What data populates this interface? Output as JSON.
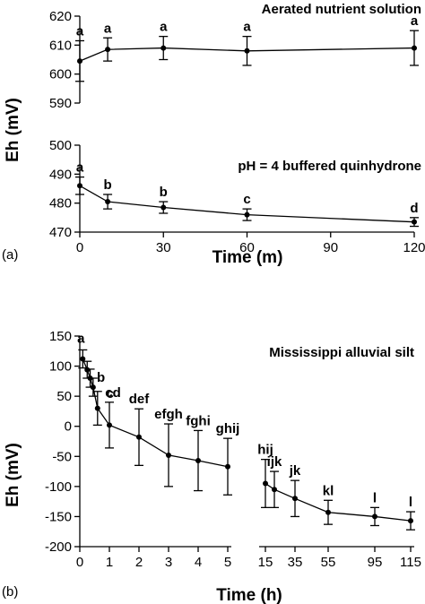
{
  "chart_data": [
    {
      "type": "line",
      "panel_label": "(a)",
      "annotation": "Aerated nutrient solution",
      "ylabel": "Eh (mV)",
      "xlabel": "Time (m)",
      "ylim": [
        590,
        620
      ],
      "yticks": [
        "590",
        "600",
        "610",
        "620"
      ],
      "xlim": [
        0,
        120
      ],
      "xticks": [
        "0",
        "30",
        "60",
        "90",
        "120"
      ],
      "x": [
        0,
        10,
        30,
        60,
        120
      ],
      "y": [
        604.5,
        608.5,
        609,
        608,
        609
      ],
      "err": [
        7,
        4,
        4,
        5,
        6
      ],
      "letters": [
        "a",
        "a",
        "a",
        "a",
        "a"
      ]
    },
    {
      "type": "line",
      "annotation": "pH = 4 buffered quinhydrone",
      "ylim": [
        470,
        500
      ],
      "yticks": [
        "470",
        "480",
        "490",
        "500"
      ],
      "xlim": [
        0,
        120
      ],
      "xticks": [
        "0",
        "30",
        "60",
        "90",
        "120"
      ],
      "x": [
        0,
        10,
        30,
        60,
        120
      ],
      "y": [
        486,
        480.5,
        478.5,
        476,
        473.5
      ],
      "err": [
        3,
        2.5,
        2,
        2,
        1.5
      ],
      "letters": [
        "a",
        "b",
        "b",
        "c",
        "d"
      ]
    },
    {
      "type": "line",
      "panel_label": "(b)",
      "annotation": "Mississippi alluvial silt",
      "ylabel": "Eh (mV)",
      "xlabel": "Time (h)",
      "ylim": [
        -200,
        150
      ],
      "yticks": [
        "-200",
        "-150",
        "-100",
        "-50",
        "0",
        "50",
        "100",
        "150"
      ],
      "xticks_left": [
        "0",
        "1",
        "2",
        "3",
        "4",
        "5"
      ],
      "xticks_right": [
        "15",
        "35",
        "55",
        "95",
        "115"
      ],
      "points_left": [
        {
          "x": 0.1,
          "y": 112,
          "err": 15,
          "letter": "a"
        },
        {
          "x": 0.25,
          "y": 94,
          "err": 14,
          "letter": ""
        },
        {
          "x": 0.35,
          "y": 80,
          "err": 15,
          "letter": "b"
        },
        {
          "x": 0.45,
          "y": 65,
          "err": 15,
          "letter": ""
        },
        {
          "x": 0.6,
          "y": 30,
          "err": 28,
          "letter": "c"
        },
        {
          "x": 1,
          "y": 2,
          "err": 38,
          "letter": "cd"
        },
        {
          "x": 2,
          "y": -18,
          "err": 47,
          "letter": "def"
        },
        {
          "x": 3,
          "y": -48,
          "err": 52,
          "letter": "efgh"
        },
        {
          "x": 4,
          "y": -57,
          "err": 50,
          "letter": "fghi"
        },
        {
          "x": 5,
          "y": -67,
          "err": 47,
          "letter": "ghij"
        }
      ],
      "points_right": [
        {
          "x": 15,
          "y": -95,
          "err": 40,
          "letter": "hij"
        },
        {
          "x": 20,
          "y": -105,
          "err": 30,
          "letter": "ijk"
        },
        {
          "x": 35,
          "y": -120,
          "err": 30,
          "letter": "jk"
        },
        {
          "x": 55,
          "y": -143,
          "err": 20,
          "letter": "kl"
        },
        {
          "x": 95,
          "y": -150,
          "err": 15,
          "letter": "l"
        },
        {
          "x": 115,
          "y": -157,
          "err": 15,
          "letter": "l"
        }
      ]
    }
  ]
}
